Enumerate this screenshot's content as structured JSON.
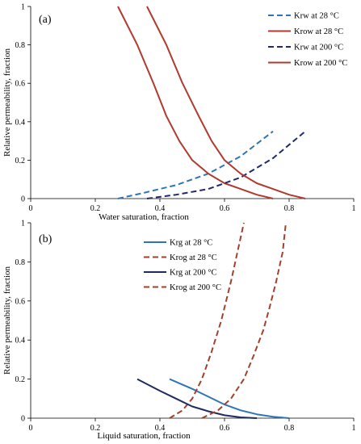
{
  "chart_data": [
    {
      "panel_label": "(a)",
      "type": "line",
      "xlabel": "Water saturation, fraction",
      "ylabel": "Relative permeability,  fraction",
      "xlim": [
        0,
        1
      ],
      "ylim": [
        0,
        1
      ],
      "xticks": [
        0,
        0.2,
        0.4,
        0.6,
        0.8,
        1
      ],
      "yticks": [
        0,
        0.2,
        0.4,
        0.6,
        0.8,
        1
      ],
      "xtick_labels": [
        "0",
        "0.2",
        "0.4",
        "0.6",
        "0.8",
        "1"
      ],
      "ytick_labels": [
        "0",
        "0.2",
        "0.4",
        "0.6",
        "0.8",
        "1"
      ],
      "legend_position": "top-right",
      "series": [
        {
          "name": "Krw at 28 °C",
          "color": "#2E75B6",
          "dash": "dashed",
          "x": [
            0.27,
            0.35,
            0.45,
            0.55,
            0.65,
            0.75
          ],
          "y": [
            0.0,
            0.03,
            0.07,
            0.13,
            0.22,
            0.35
          ]
        },
        {
          "name": "Krow at 28 °C",
          "color": "#B03A2E",
          "dash": "solid",
          "x": [
            0.27,
            0.33,
            0.38,
            0.42,
            0.46,
            0.5,
            0.55,
            0.6,
            0.65,
            0.7,
            0.75
          ],
          "y": [
            1.0,
            0.8,
            0.6,
            0.43,
            0.3,
            0.2,
            0.13,
            0.08,
            0.05,
            0.02,
            0.0
          ]
        },
        {
          "name": "Krw at 200 °C",
          "color": "#1F2A6E",
          "dash": "dashed",
          "x": [
            0.36,
            0.45,
            0.55,
            0.65,
            0.75,
            0.85
          ],
          "y": [
            0.0,
            0.02,
            0.05,
            0.11,
            0.21,
            0.35
          ]
        },
        {
          "name": "Krow at 200 °C",
          "color": "#B03A2E",
          "dash": "solid",
          "x": [
            0.36,
            0.42,
            0.47,
            0.52,
            0.56,
            0.6,
            0.65,
            0.7,
            0.75,
            0.8,
            0.85
          ],
          "y": [
            1.0,
            0.8,
            0.6,
            0.43,
            0.3,
            0.2,
            0.13,
            0.08,
            0.05,
            0.02,
            0.0
          ]
        }
      ]
    },
    {
      "panel_label": "(b)",
      "type": "line",
      "xlabel": "Liquid saturation, fraction",
      "ylabel": "Relative permeability,  fraction",
      "xlim": [
        0,
        1
      ],
      "ylim": [
        0,
        1
      ],
      "xticks": [
        0,
        0.2,
        0.4,
        0.6,
        0.8,
        1
      ],
      "yticks": [
        0,
        0.2,
        0.4,
        0.6,
        0.8,
        1
      ],
      "xtick_labels": [
        "0",
        "0.2",
        "0.4",
        "0.6",
        "0.8",
        "1"
      ],
      "ytick_labels": [
        "0",
        "0.2",
        "0.4",
        "0.6",
        "0.8",
        "1"
      ],
      "legend_position": "top-left",
      "series": [
        {
          "name": "Krg at 28 °C",
          "color": "#2E75B6",
          "dash": "solid",
          "x": [
            0.43,
            0.5,
            0.55,
            0.6,
            0.65,
            0.7,
            0.75,
            0.8
          ],
          "y": [
            0.2,
            0.15,
            0.11,
            0.07,
            0.04,
            0.02,
            0.007,
            0.0
          ]
        },
        {
          "name": "Krog at 28 °C",
          "color": "#A0412D",
          "dash": "dashed",
          "x": [
            0.43,
            0.47,
            0.5,
            0.53,
            0.56,
            0.59,
            0.62,
            0.64,
            0.66
          ],
          "y": [
            0.0,
            0.04,
            0.1,
            0.2,
            0.34,
            0.5,
            0.7,
            0.85,
            1.0
          ]
        },
        {
          "name": "Krg at 200 °C",
          "color": "#1F2A5E",
          "dash": "solid",
          "x": [
            0.33,
            0.4,
            0.45,
            0.5,
            0.55,
            0.6,
            0.65,
            0.7
          ],
          "y": [
            0.2,
            0.14,
            0.1,
            0.06,
            0.035,
            0.015,
            0.004,
            0.0
          ]
        },
        {
          "name": "Krog at 200 °C",
          "color": "#A0412D",
          "dash": "dashed",
          "x": [
            0.53,
            0.58,
            0.62,
            0.66,
            0.69,
            0.72,
            0.74,
            0.76,
            0.78,
            0.79
          ],
          "y": [
            0.0,
            0.04,
            0.1,
            0.2,
            0.32,
            0.45,
            0.57,
            0.7,
            0.85,
            1.0
          ]
        }
      ]
    }
  ]
}
